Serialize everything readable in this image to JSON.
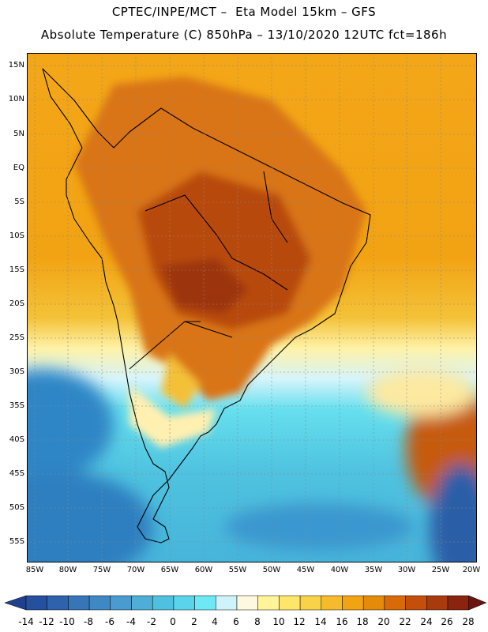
{
  "header": {
    "line1": "CPTEC/INPE/MCT –  Eta Model 15km – GFS",
    "line2": "Absolute Temperature (C) 850hPa – 13/10/2020 12UTC fct=186h"
  },
  "map": {
    "lat_labels": [
      "15N",
      "10N",
      "5N",
      "EQ",
      "5S",
      "10S",
      "15S",
      "20S",
      "25S",
      "30S",
      "35S",
      "40S",
      "45S",
      "50S",
      "55S"
    ],
    "lon_labels": [
      "85W",
      "80W",
      "75W",
      "70W",
      "65W",
      "60W",
      "55W",
      "50W",
      "45W",
      "40W",
      "35W",
      "30W",
      "25W",
      "20W"
    ]
  },
  "colorbar": {
    "labels": [
      "-14",
      "-12",
      "-10",
      "-8",
      "-6",
      "-4",
      "-2",
      "0",
      "2",
      "4",
      "6",
      "8",
      "10",
      "12",
      "14",
      "16",
      "18",
      "20",
      "22",
      "24",
      "26",
      "28"
    ],
    "colors": [
      "#1f3f8f",
      "#24509e",
      "#2d63ad",
      "#3575b8",
      "#3f88c4",
      "#4a9bcf",
      "#4eaed8",
      "#50c0e0",
      "#5ad4ea",
      "#6de8f4",
      "#cff3fb",
      "#fff8e0",
      "#fff49a",
      "#fde66a",
      "#f9d24a",
      "#f5bb2c",
      "#f0a414",
      "#e68a0a",
      "#d86a08",
      "#c44f0a",
      "#a83a0e",
      "#882410",
      "#6a1410"
    ]
  }
}
